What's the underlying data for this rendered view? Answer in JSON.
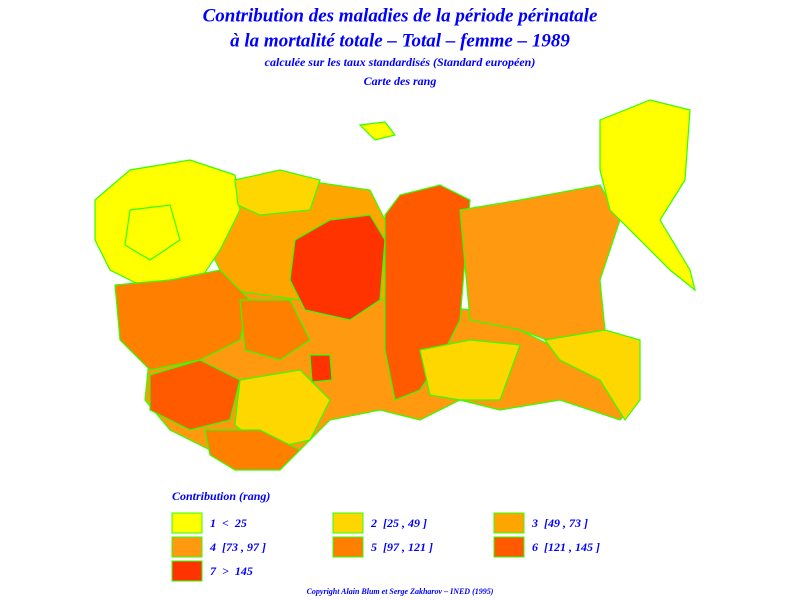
{
  "header": {
    "title": "Contribution des maladies de la période périnatale",
    "title2": "à la mortalité totale – Total – femme – 1989",
    "subtitle": "calculée sur les taux standardisés (Standard européen)",
    "map_title": "Carte des rang"
  },
  "legend": {
    "title": "Contribution (rang)",
    "items": [
      {
        "label": "1  <  25",
        "color": "#ffff00"
      },
      {
        "label": "2  [25 , 49 ]",
        "color": "#ffd700"
      },
      {
        "label": "3  [49 , 73 ]",
        "color": "#ffa500"
      },
      {
        "label": "4  [73 , 97 ]",
        "color": "#ff9a10"
      },
      {
        "label": "5  [97 , 121 ]",
        "color": "#ff7f00"
      },
      {
        "label": "6  [121 , 145 ]",
        "color": "#ff5a00"
      },
      {
        "label": "7  >  145",
        "color": "#ff3300"
      }
    ]
  },
  "footer": {
    "copyright": "Copyright Alain Blum et Serge Zakharov – INED (1995)"
  }
}
